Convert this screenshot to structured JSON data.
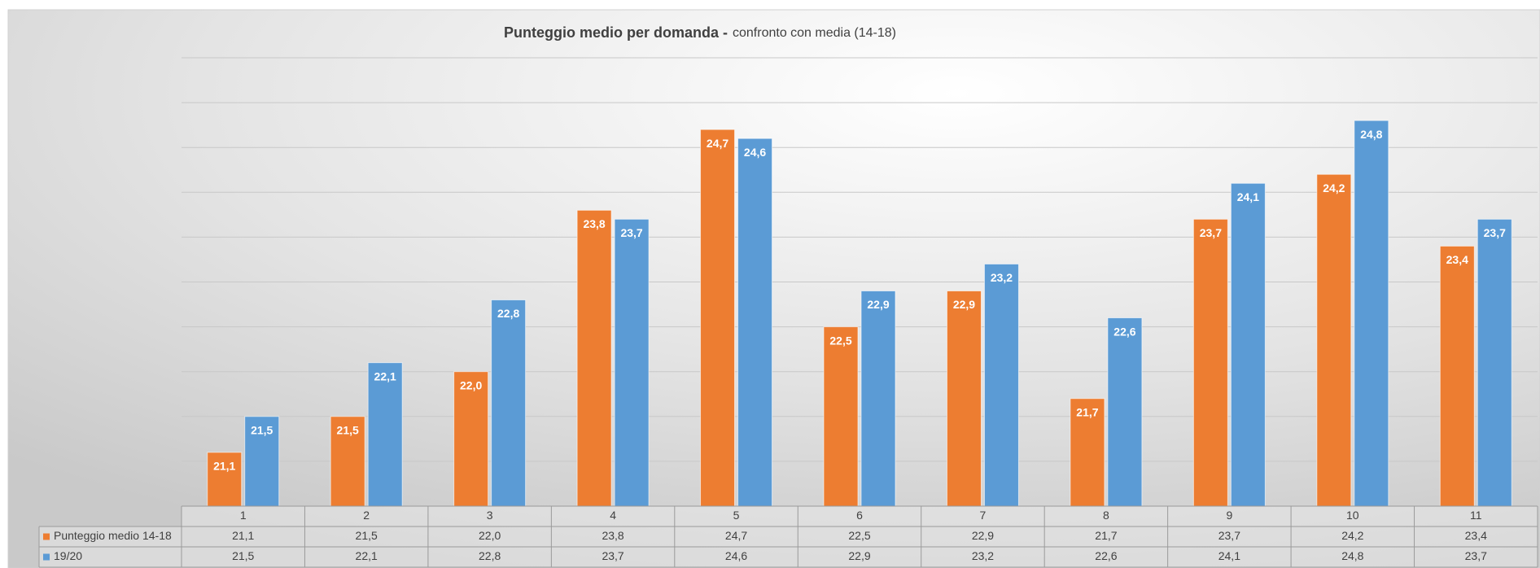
{
  "chart_data": {
    "type": "bar",
    "title": "Punteggio medio per domanda -",
    "subtitle": "confronto con media (14-18)",
    "categories": [
      "1",
      "2",
      "3",
      "4",
      "5",
      "6",
      "7",
      "8",
      "9",
      "10",
      "11"
    ],
    "series": [
      {
        "name": "Punteggio medio 14-18",
        "color": "#ed7d31",
        "values": [
          21.1,
          21.5,
          22.0,
          23.8,
          24.7,
          22.5,
          22.9,
          21.7,
          23.7,
          24.2,
          23.4
        ],
        "value_labels": [
          "21,1",
          "21,5",
          "22,0",
          "23,8",
          "24,7",
          "22,5",
          "22,9",
          "21,7",
          "23,7",
          "24,2",
          "23,4"
        ]
      },
      {
        "name": "19/20",
        "color": "#5b9bd5",
        "values": [
          21.5,
          22.1,
          22.8,
          23.7,
          24.6,
          22.9,
          23.2,
          22.6,
          24.1,
          24.8,
          23.7
        ],
        "value_labels": [
          "21,5",
          "22,1",
          "22,8",
          "23,7",
          "24,6",
          "22,9",
          "23,2",
          "22,6",
          "24,1",
          "24,8",
          "23,7"
        ]
      }
    ],
    "ylim": [
      20.5,
      25.5
    ],
    "yticks": [
      20.5,
      21,
      21.5,
      22,
      22.5,
      23,
      23.5,
      24,
      24.5,
      25,
      25.5
    ],
    "grid": true
  }
}
